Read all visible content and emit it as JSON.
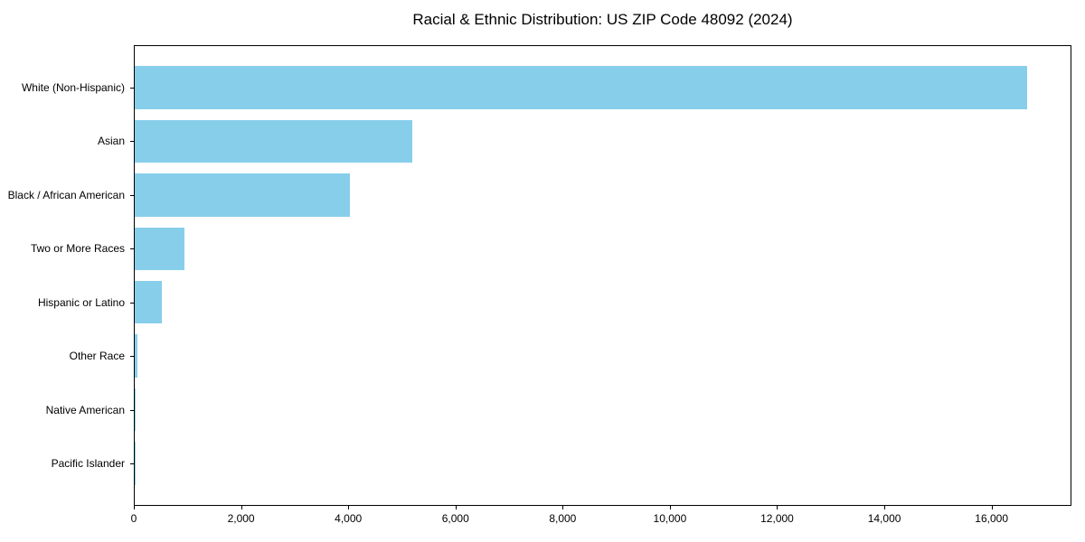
{
  "chart_data": {
    "type": "bar",
    "orientation": "horizontal",
    "title": "Racial & Ethnic Distribution: US ZIP Code 48092 (2024)",
    "categories": [
      "White (Non-Hispanic)",
      "Asian",
      "Black / African American",
      "Two or More Races",
      "Hispanic or Latino",
      "Other Race",
      "Native American",
      "Pacific Islander"
    ],
    "values": [
      16650,
      5180,
      4020,
      920,
      510,
      45,
      20,
      5
    ],
    "xlabel": "",
    "ylabel": "",
    "xlim": [
      0,
      17490
    ],
    "x_ticks": [
      0,
      2000,
      4000,
      6000,
      8000,
      10000,
      12000,
      14000,
      16000
    ],
    "x_tick_labels": [
      "0",
      "2,000",
      "4,000",
      "6,000",
      "8,000",
      "10,000",
      "12,000",
      "14,000",
      "16,000"
    ],
    "grid": false,
    "legend_position": "none",
    "bar_color": "#87CEEB",
    "axis_color": "#000000",
    "text_color": "#000000",
    "background_color": "#ffffff"
  }
}
